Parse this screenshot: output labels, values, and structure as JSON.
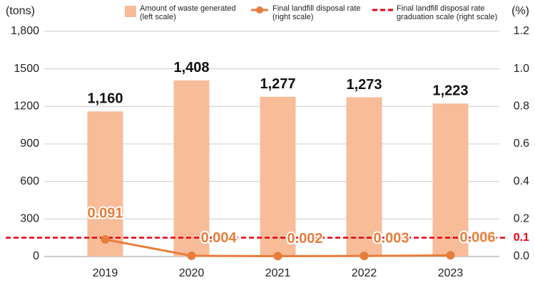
{
  "chart_data": {
    "type": "bar",
    "y_label": "(tons)",
    "y2_label": "(%)",
    "categories": [
      "2019",
      "2020",
      "2021",
      "2022",
      "2023"
    ],
    "series": [
      {
        "name": "Amount of waste generated\n(left scale)",
        "type": "bar",
        "color": "#f8bc99",
        "values": [
          1160,
          1408,
          1277,
          1273,
          1223
        ],
        "value_labels": [
          "1,160",
          "1,408",
          "1,277",
          "1,273",
          "1,223"
        ]
      },
      {
        "name": "Final landfill disposal rate\n(right scale)",
        "type": "line",
        "axis": "y2",
        "color": "#e87d3a",
        "values": [
          0.091,
          0.004,
          0.002,
          0.003,
          0.006
        ]
      }
    ],
    "reference_line": {
      "name": "Final landfill disposal rate\ngraduation scale (right scale)",
      "axis": "y2",
      "value": 0.1,
      "color": "#e60012"
    },
    "ylim": [
      0,
      1800
    ],
    "yticks": [
      0,
      300,
      600,
      900,
      1200,
      1500,
      {
        "value": 1800,
        "label": "1,800"
      }
    ],
    "y2lim": [
      0,
      1.2
    ],
    "y2ticks": [
      {
        "value": 0,
        "label": "0.0"
      },
      0.2,
      0.4,
      0.6,
      0.8,
      {
        "value": 1,
        "label": "1.0"
      },
      1.2
    ],
    "grid": true
  }
}
